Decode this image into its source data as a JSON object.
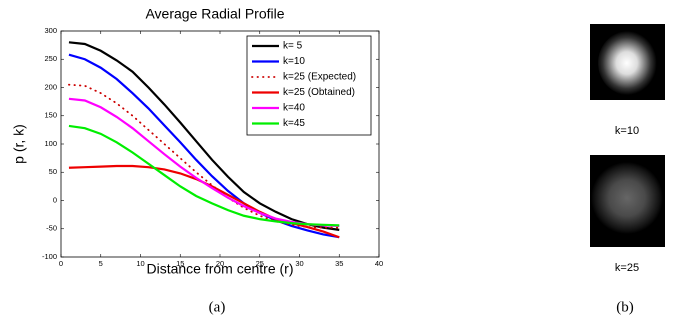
{
  "chart_data": {
    "type": "line",
    "title": "Average Radial Profile",
    "x_label": "Distance from centre (r)",
    "y_label": "p (r, k)",
    "x": [
      1,
      3,
      5,
      7,
      9,
      11,
      13,
      15,
      17,
      19,
      21,
      23,
      25,
      27,
      29,
      31,
      33,
      35
    ],
    "series": [
      {
        "name": "k= 5",
        "color": "#000000",
        "style": "solid",
        "values": [
          280,
          277,
          265,
          248,
          228,
          200,
          170,
          138,
          105,
          72,
          42,
          15,
          -5,
          -20,
          -33,
          -42,
          -48,
          -52
        ]
      },
      {
        "name": "k=10",
        "color": "#0000ff",
        "style": "solid",
        "values": [
          258,
          250,
          235,
          215,
          190,
          163,
          133,
          103,
          72,
          43,
          17,
          -5,
          -22,
          -35,
          -45,
          -53,
          -60,
          -65
        ]
      },
      {
        "name": "k=25 (Expected)",
        "color": "#cc0000",
        "style": "dotted",
        "values": [
          205,
          203,
          190,
          172,
          150,
          125,
          100,
          75,
          50,
          27,
          5,
          -13,
          -27,
          -37,
          -43,
          -47,
          -48,
          -48
        ]
      },
      {
        "name": "k=25 (Obtained)",
        "color": "#ee0000",
        "style": "solid",
        "values": [
          58,
          59,
          60,
          61,
          61,
          59,
          55,
          48,
          38,
          25,
          10,
          -5,
          -20,
          -33,
          -40,
          -47,
          -55,
          -65
        ]
      },
      {
        "name": "k=40",
        "color": "#ff00ff",
        "style": "solid",
        "values": [
          180,
          177,
          165,
          148,
          128,
          105,
          82,
          60,
          40,
          22,
          5,
          -10,
          -22,
          -32,
          -38,
          -42,
          -44,
          -45
        ]
      },
      {
        "name": "k=45",
        "color": "#00ee00",
        "style": "solid",
        "values": [
          132,
          128,
          118,
          103,
          85,
          65,
          45,
          25,
          8,
          -5,
          -17,
          -27,
          -33,
          -37,
          -40,
          -42,
          -43,
          -44
        ]
      }
    ],
    "xlim": [
      0,
      40
    ],
    "xticks": [
      0,
      5,
      10,
      15,
      20,
      25,
      30,
      35,
      40
    ],
    "ylim": [
      -100,
      300
    ],
    "yticks": [
      -100,
      -50,
      0,
      50,
      100,
      150,
      200,
      250,
      300
    ],
    "legend": "top-right"
  },
  "panels": {
    "a_caption": "(a)",
    "b_caption": "(b)",
    "images": [
      {
        "label": "k=10"
      },
      {
        "label": "k=25"
      }
    ]
  }
}
